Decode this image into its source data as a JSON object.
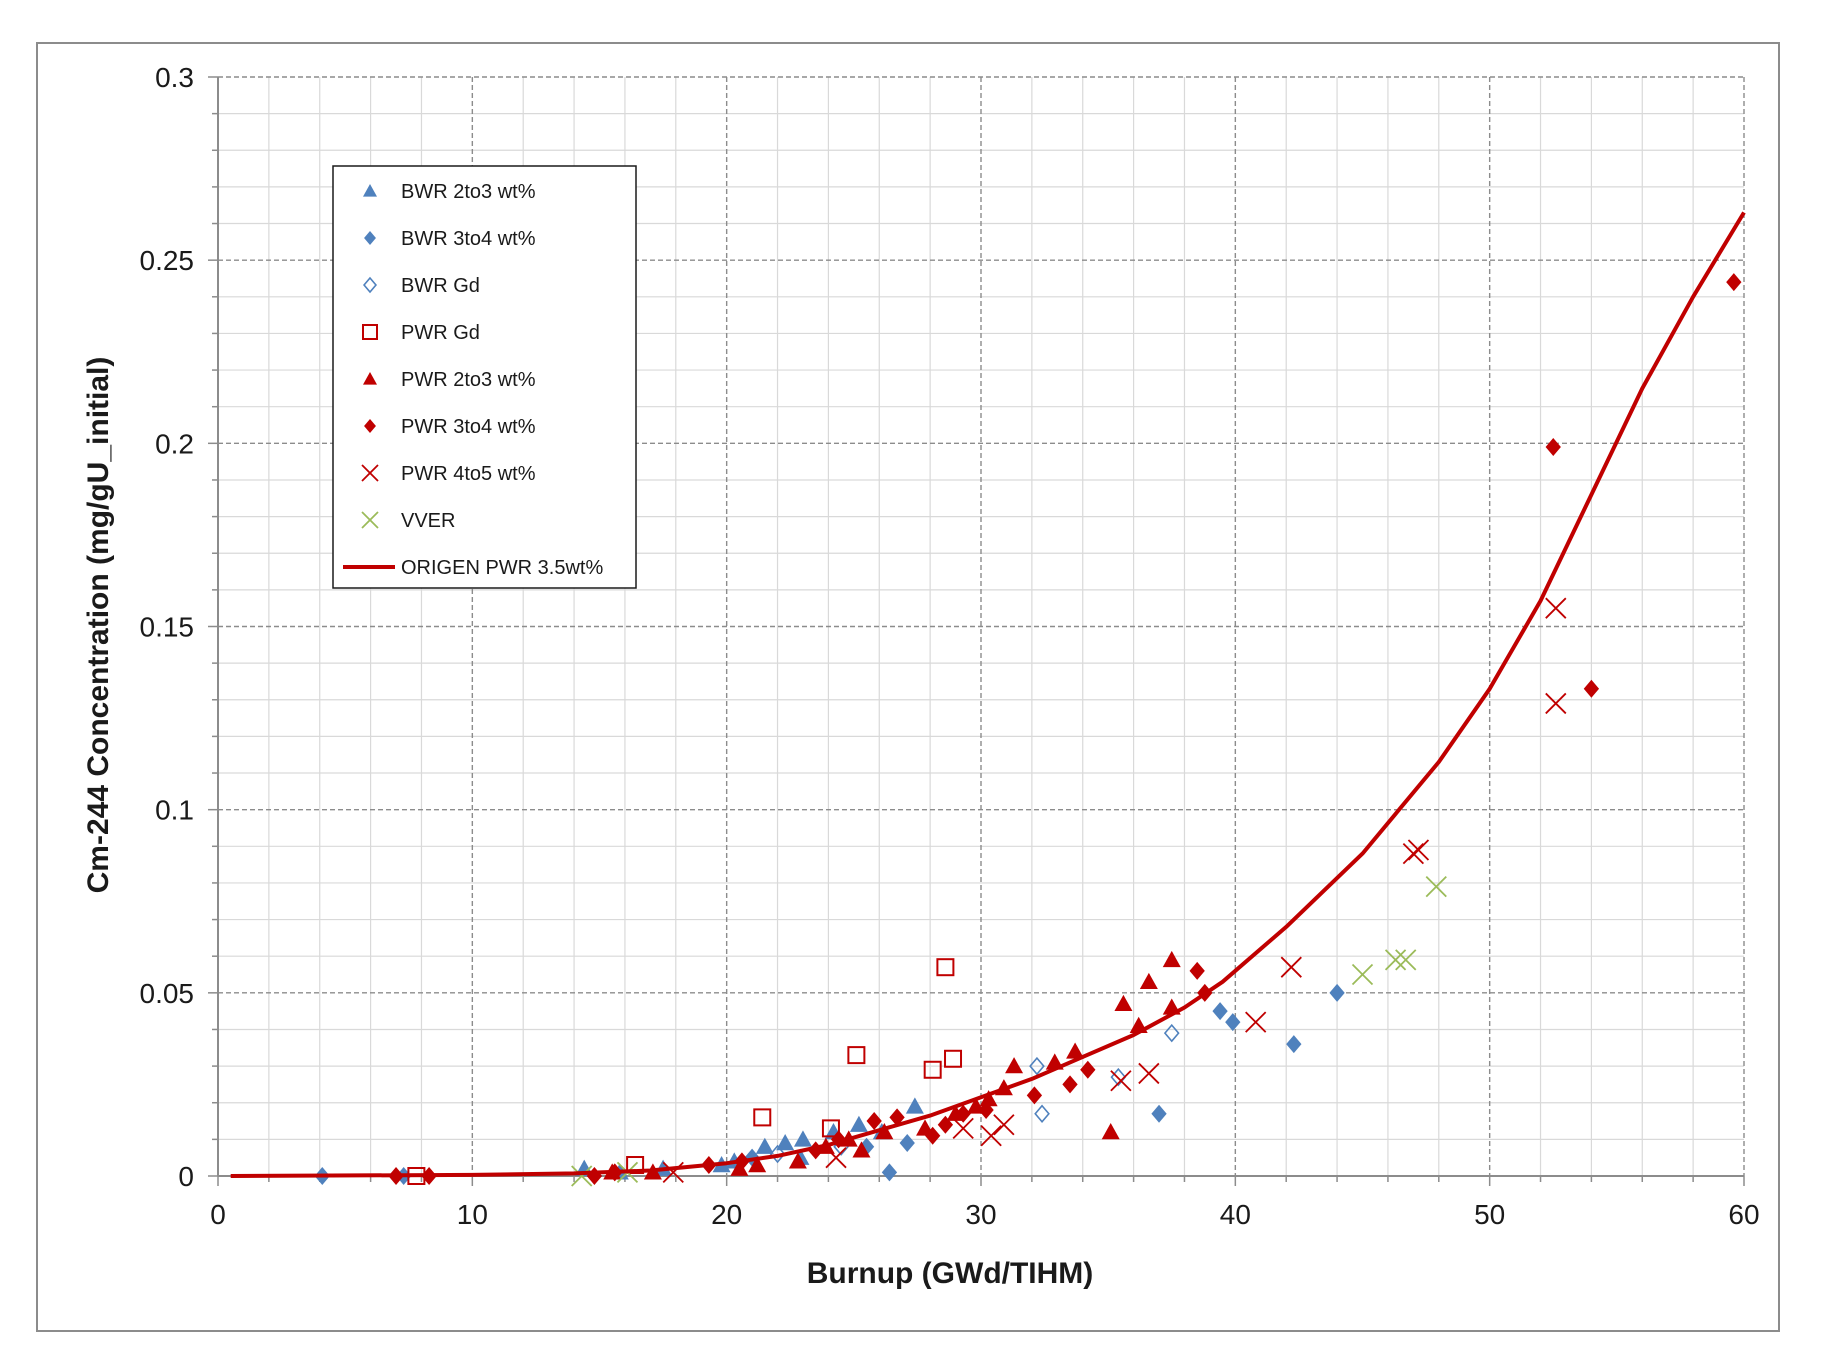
{
  "chart_data": {
    "type": "scatter",
    "title": "",
    "xlabel": "Burnup (GWd/TIHM)",
    "ylabel": "Cm-244 Concentration (mg/gU_initial)",
    "xlim": [
      0,
      60
    ],
    "ylim": [
      0,
      0.3
    ],
    "x_ticks": [
      "0",
      "10",
      "20",
      "30",
      "40",
      "50",
      "60"
    ],
    "y_ticks": [
      "0",
      "0.05",
      "0.1",
      "0.15",
      "0.2",
      "0.25",
      "0.3"
    ],
    "grid": "major dashed, minor solid",
    "legend_position": "top-left",
    "series": [
      {
        "name": "BWR 2to3 wt%",
        "marker": "triangle-filled",
        "color": "#4f81bd",
        "points": [
          [
            14.4,
            0.002
          ],
          [
            15.8,
            0.001
          ],
          [
            17.5,
            0.002
          ],
          [
            19.8,
            0.003
          ],
          [
            21.5,
            0.008
          ],
          [
            22.3,
            0.009
          ],
          [
            23.0,
            0.01
          ],
          [
            24.2,
            0.012
          ],
          [
            25.2,
            0.014
          ],
          [
            26.1,
            0.012
          ],
          [
            27.4,
            0.019
          ],
          [
            20.3,
            0.004
          ],
          [
            22.9,
            0.005
          ]
        ]
      },
      {
        "name": "BWR 3to4 wt%",
        "marker": "diamond-filled",
        "color": "#4f81bd",
        "points": [
          [
            4.1,
            0.0
          ],
          [
            7.3,
            0.0
          ],
          [
            26.4,
            0.001
          ],
          [
            27.1,
            0.009
          ],
          [
            37.0,
            0.017
          ],
          [
            39.4,
            0.045
          ],
          [
            39.9,
            0.042
          ],
          [
            42.3,
            0.036
          ],
          [
            44.0,
            0.05
          ],
          [
            21.0,
            0.005
          ],
          [
            25.5,
            0.008
          ]
        ]
      },
      {
        "name": "BWR Gd",
        "marker": "diamond-open",
        "color": "#4f81bd",
        "points": [
          [
            32.2,
            0.03
          ],
          [
            32.4,
            0.017
          ],
          [
            35.4,
            0.027
          ],
          [
            37.5,
            0.039
          ],
          [
            22.0,
            0.006
          ],
          [
            24.5,
            0.008
          ]
        ]
      },
      {
        "name": "PWR Gd",
        "marker": "square-open",
        "color": "#c00000",
        "points": [
          [
            7.8,
            0.0
          ],
          [
            16.4,
            0.003
          ],
          [
            21.4,
            0.016
          ],
          [
            24.1,
            0.013
          ],
          [
            25.1,
            0.033
          ],
          [
            28.1,
            0.029
          ],
          [
            28.6,
            0.057
          ],
          [
            28.9,
            0.032
          ]
        ]
      },
      {
        "name": "PWR 2to3 wt%",
        "marker": "triangle-filled",
        "color": "#c00000",
        "points": [
          [
            15.5,
            0.001
          ],
          [
            17.1,
            0.001
          ],
          [
            20.5,
            0.002
          ],
          [
            21.2,
            0.003
          ],
          [
            22.8,
            0.004
          ],
          [
            23.9,
            0.008
          ],
          [
            24.8,
            0.01
          ],
          [
            25.3,
            0.007
          ],
          [
            26.2,
            0.012
          ],
          [
            27.8,
            0.013
          ],
          [
            29.0,
            0.017
          ],
          [
            29.8,
            0.019
          ],
          [
            30.3,
            0.021
          ],
          [
            30.9,
            0.024
          ],
          [
            31.3,
            0.03
          ],
          [
            32.9,
            0.031
          ],
          [
            33.7,
            0.034
          ],
          [
            35.1,
            0.012
          ],
          [
            35.6,
            0.047
          ],
          [
            36.2,
            0.041
          ],
          [
            36.6,
            0.053
          ],
          [
            37.5,
            0.046
          ],
          [
            37.5,
            0.059
          ]
        ]
      },
      {
        "name": "PWR 3to4 wt%",
        "marker": "diamond-filled",
        "color": "#c00000",
        "points": [
          [
            7.0,
            0.0
          ],
          [
            8.3,
            0.0
          ],
          [
            14.8,
            0.0
          ],
          [
            15.6,
            0.001
          ],
          [
            19.3,
            0.003
          ],
          [
            20.6,
            0.004
          ],
          [
            23.5,
            0.007
          ],
          [
            24.4,
            0.01
          ],
          [
            25.8,
            0.015
          ],
          [
            26.7,
            0.016
          ],
          [
            28.1,
            0.011
          ],
          [
            28.6,
            0.014
          ],
          [
            29.3,
            0.017
          ],
          [
            30.2,
            0.018
          ],
          [
            32.1,
            0.022
          ],
          [
            33.5,
            0.025
          ],
          [
            34.2,
            0.029
          ],
          [
            38.5,
            0.056
          ],
          [
            38.8,
            0.05
          ],
          [
            52.5,
            0.199
          ],
          [
            54.0,
            0.133
          ],
          [
            59.6,
            0.244
          ]
        ]
      },
      {
        "name": "PWR 4to5 wt%",
        "marker": "x",
        "color": "#c00000",
        "points": [
          [
            17.9,
            0.001
          ],
          [
            24.3,
            0.005
          ],
          [
            29.3,
            0.013
          ],
          [
            30.4,
            0.011
          ],
          [
            30.9,
            0.014
          ],
          [
            35.5,
            0.026
          ],
          [
            36.6,
            0.028
          ],
          [
            40.8,
            0.042
          ],
          [
            42.2,
            0.057
          ],
          [
            47.0,
            0.088
          ],
          [
            47.2,
            0.089
          ],
          [
            52.6,
            0.155
          ],
          [
            52.6,
            0.129
          ]
        ]
      },
      {
        "name": "VVER",
        "marker": "x",
        "color": "#9bbb59",
        "points": [
          [
            14.3,
            0.0
          ],
          [
            16.1,
            0.001
          ],
          [
            45.0,
            0.055
          ],
          [
            46.3,
            0.059
          ],
          [
            46.7,
            0.059
          ],
          [
            47.9,
            0.079
          ]
        ]
      },
      {
        "name": "ORIGEN PWR 3.5wt%",
        "marker": "line",
        "color": "#c00000",
        "points": [
          [
            0.5,
            0.0
          ],
          [
            10,
            0.0003
          ],
          [
            14,
            0.0007
          ],
          [
            17,
            0.0015
          ],
          [
            20,
            0.0035
          ],
          [
            22,
            0.0055
          ],
          [
            24,
            0.0085
          ],
          [
            26,
            0.0125
          ],
          [
            28,
            0.0165
          ],
          [
            30,
            0.0215
          ],
          [
            32,
            0.0265
          ],
          [
            34,
            0.0325
          ],
          [
            36,
            0.0385
          ],
          [
            38,
            0.046
          ],
          [
            39.5,
            0.053
          ],
          [
            42,
            0.068
          ],
          [
            45,
            0.088
          ],
          [
            48,
            0.113
          ],
          [
            50,
            0.133
          ],
          [
            52,
            0.157
          ],
          [
            54,
            0.186
          ],
          [
            56,
            0.215
          ],
          [
            58,
            0.24
          ],
          [
            60,
            0.263
          ]
        ]
      }
    ]
  }
}
